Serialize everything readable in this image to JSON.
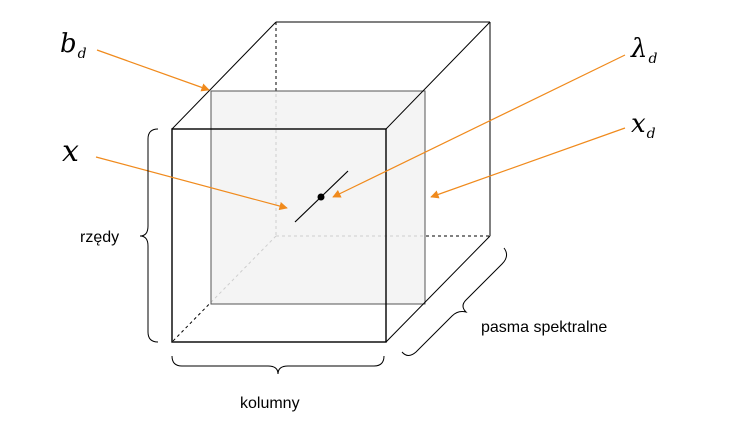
{
  "labels": {
    "b_main": "b",
    "b_sub": "d",
    "x_main": "x",
    "lambda_main": "λ",
    "lambda_sub": "d",
    "xd_main": "x",
    "xd_sub": "d",
    "rows": "rzędy",
    "columns": "kolumny",
    "bands": "pasma spektralne"
  },
  "colors": {
    "arrow": "#f08a1c",
    "edge": "#000000",
    "slice_fill": "#f2f2f2",
    "slice_edge": "#555555"
  }
}
